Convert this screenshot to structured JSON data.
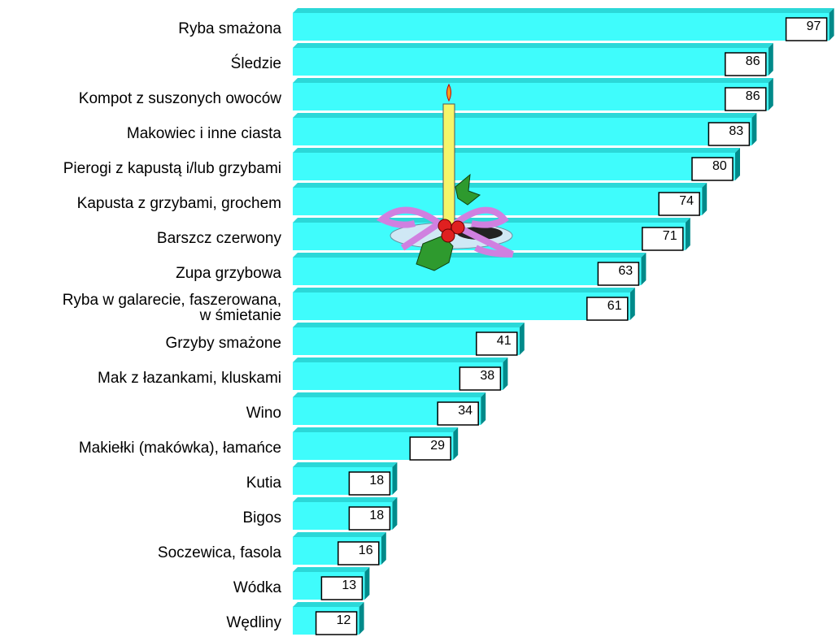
{
  "chart_data": {
    "type": "bar",
    "orientation": "horizontal",
    "color": "#3ffcfc",
    "categories": [
      "Ryba smażona",
      "Śledzie",
      "Kompot z suszonych owoców",
      "Makowiec i inne ciasta",
      "Pierogi z kapustą i/lub grzybami",
      "Kapusta z grzybami, grochem",
      "Barszcz czerwony",
      "Zupa grzybowa",
      "Ryba w galarecie, faszerowana,\nw śmietanie",
      "Grzyby smażone",
      "Mak z łazankami, kluskami",
      "Wino",
      "Makiełki (makówka), łamańce",
      "Kutia",
      "Bigos",
      "Soczewica, fasola",
      "Wódka",
      "Wędliny"
    ],
    "values": [
      97,
      86,
      86,
      83,
      80,
      74,
      71,
      63,
      61,
      41,
      38,
      34,
      29,
      18,
      18,
      16,
      13,
      12
    ]
  }
}
